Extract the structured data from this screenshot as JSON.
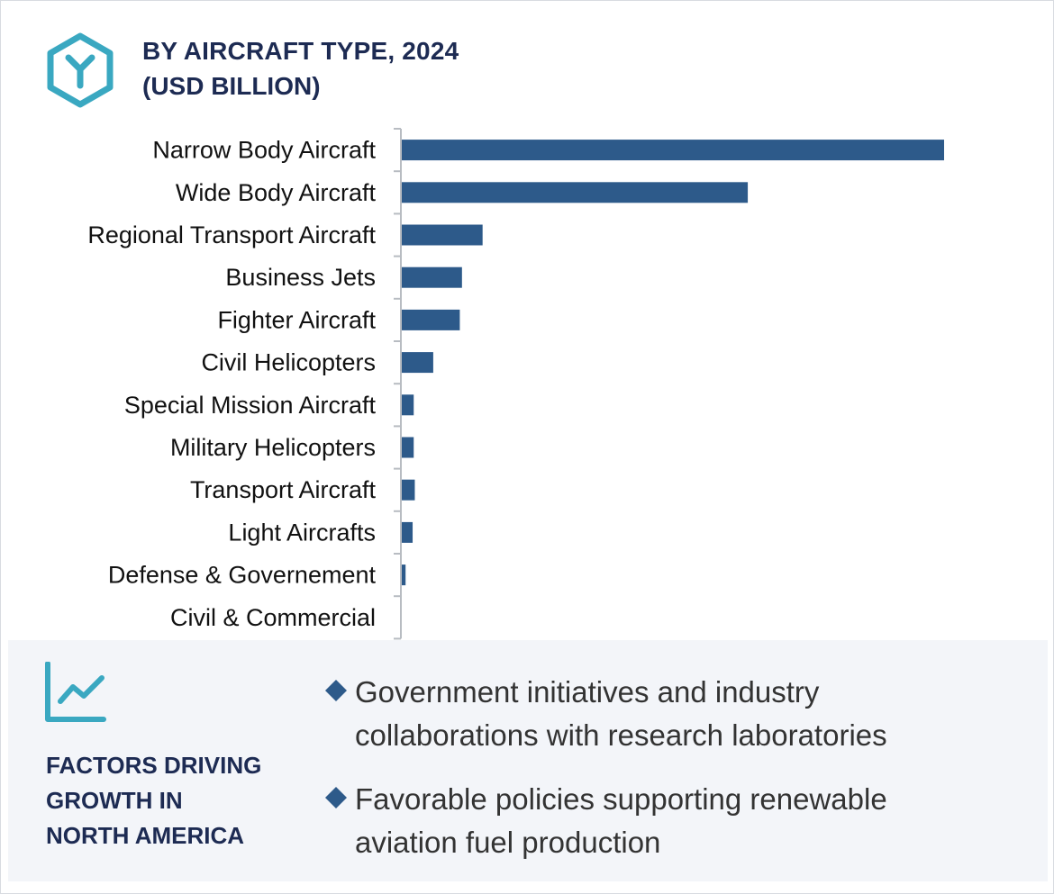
{
  "header": {
    "title": "BY AIRCRAFT TYPE, 2024",
    "subtitle": "(USD BILLION)",
    "icon": "hexagon-y-icon"
  },
  "colors": {
    "bar": "#2d5a8a",
    "heading": "#1d2b53",
    "icon_teal": "#3aa8c1",
    "panel_bg": "#f3f5f9"
  },
  "chart_data": {
    "type": "bar",
    "orientation": "horizontal",
    "title": "BY AIRCRAFT TYPE, 2024",
    "subtitle": "(USD BILLION)",
    "categories": [
      "Narrow Body Aircraft",
      "Wide Body Aircraft",
      "Regional Transport Aircraft",
      "Business Jets",
      "Fighter Aircraft",
      "Civil Helicopters",
      "Special Mission Aircraft",
      "Military Helicopters",
      "Transport Aircraft",
      "Light Aircrafts",
      "Defense & Governement",
      "Civil & Commercial"
    ],
    "values": [
      100,
      63.8,
      14.9,
      11.1,
      10.7,
      5.8,
      2.2,
      2.2,
      2.4,
      2.0,
      0.7,
      0
    ],
    "value_unit": "relative to largest bar (no scale printed)",
    "grid": false,
    "legend": "none"
  },
  "panel": {
    "icon": "line-chart-icon",
    "heading_lines": [
      "FACTORS DRIVING",
      "GROWTH IN",
      "NORTH AMERICA"
    ],
    "factors": [
      {
        "lines": [
          "Government initiatives and industry",
          "collaborations with research laboratories"
        ]
      },
      {
        "lines": [
          "Favorable policies supporting renewable",
          "aviation fuel production"
        ]
      }
    ]
  }
}
